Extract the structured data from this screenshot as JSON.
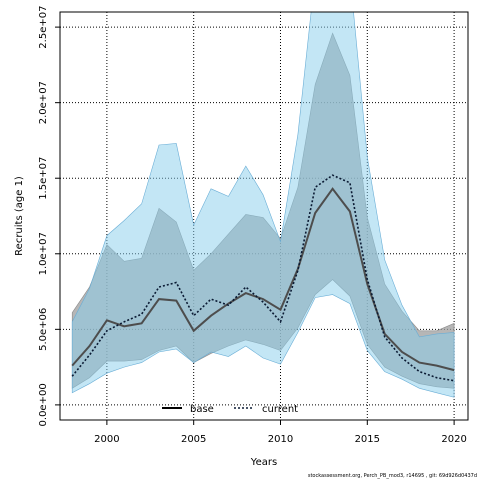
{
  "chart_data": {
    "type": "area",
    "title": "",
    "xlabel": "Years",
    "ylabel": "Recruits (age 1)",
    "xlim": [
      1997.3,
      2020.8
    ],
    "ylim": [
      -1000000,
      26000000
    ],
    "x_ticks": [
      2000,
      2005,
      2010,
      2015,
      2020
    ],
    "x_tick_labels": [
      "2000",
      "2005",
      "2010",
      "2015",
      "2020"
    ],
    "y_ticks": [
      0,
      5000000,
      10000000,
      15000000,
      20000000,
      25000000
    ],
    "y_tick_labels": [
      "0.0e+00",
      "5.0e+06",
      "1.0e+07",
      "1.5e+07",
      "2.0e+07",
      "2.5e+07"
    ],
    "grid": true,
    "legend_position": "bottom-left",
    "x": [
      1998,
      1999,
      2000,
      2001,
      2002,
      2003,
      2004,
      2005,
      2006,
      2007,
      2008,
      2009,
      2010,
      2011,
      2012,
      2013,
      2014,
      2015,
      2016,
      2017,
      2018,
      2019,
      2020
    ],
    "series": [
      {
        "name": "base",
        "line_color": "#4d4d4d",
        "band_color": "#9e9e9e",
        "values": [
          2600000,
          3900000,
          5600000,
          5200000,
          5400000,
          7000000,
          6900000,
          4900000,
          5900000,
          6700000,
          7400000,
          7000000,
          6300000,
          9000000,
          12700000,
          14300000,
          12800000,
          8000000,
          4700000,
          3500000,
          2800000,
          2600000,
          2300000
        ],
        "lower": [
          1100000,
          1800000,
          2900000,
          2900000,
          3000000,
          3600000,
          3900000,
          2800000,
          3400000,
          3900000,
          4300000,
          4000000,
          3600000,
          5100000,
          7300000,
          8300000,
          7200000,
          4000000,
          2500000,
          1900000,
          1400000,
          1200000,
          1100000
        ],
        "upper": [
          6100000,
          7800000,
          10600000,
          9500000,
          9700000,
          13000000,
          12100000,
          8900000,
          10000000,
          11300000,
          12600000,
          12400000,
          11000000,
          14400000,
          21200000,
          24600000,
          21800000,
          12400000,
          8000000,
          6200000,
          4900000,
          4900000,
          5400000
        ]
      },
      {
        "name": "current",
        "line_color": "#0a1a33",
        "band_color": "#87ceeb",
        "values": [
          1900000,
          3300000,
          4900000,
          5500000,
          6000000,
          7800000,
          8100000,
          5900000,
          7000000,
          6600000,
          7800000,
          6800000,
          5500000,
          8900000,
          14400000,
          15200000,
          14700000,
          8300000,
          4500000,
          3100000,
          2200000,
          1800000,
          1600000
        ],
        "lower": [
          800000,
          1400000,
          2100000,
          2500000,
          2800000,
          3500000,
          3700000,
          2800000,
          3500000,
          3200000,
          3900000,
          3100000,
          2700000,
          4800000,
          7100000,
          7300000,
          6700000,
          3600000,
          2200000,
          1700000,
          1100000,
          800000,
          500000
        ],
        "upper": [
          5500000,
          7700000,
          11200000,
          12200000,
          13300000,
          17200000,
          17300000,
          11900000,
          14300000,
          13800000,
          15800000,
          13900000,
          10800000,
          17900000,
          28500000,
          32000000,
          28500000,
          16400000,
          9600000,
          6600000,
          4500000,
          4700000,
          4800000
        ]
      }
    ]
  },
  "footer": "stockassessment.org, Perch_PB_mod3, r14695 , git: 69d926d0437d"
}
